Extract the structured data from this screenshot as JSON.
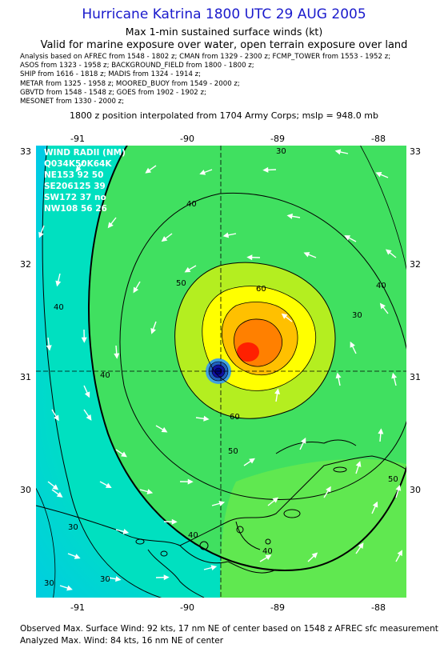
{
  "title": "Hurricane Katrina 1800 UTC 29 AUG 2005",
  "subtitle1": "Max 1-min sustained surface winds (kt)",
  "subtitle2": "Valid for marine exposure over water, open terrain exposure over land",
  "sources": [
    "Analysis based on  AFREC from 1548 - 1802 z;  CMAN from 1329 - 2300 z;  FCMP_TOWER from 1553 - 1952 z;",
    "ASOS from 1323 - 1958 z;  BACKGROUND_FIELD from 1800 - 1800 z;",
    "SHIP from 1616 - 1818 z;  MADIS from 1324 - 1914 z;",
    "METAR from 1325 - 1958 z;  MOORED_BUOY from 1549 - 2000 z;",
    "GBVTD from 1548 - 1548 z;  GOES from 1902 - 1902 z;",
    "MESONET from 1330 - 2000 z;"
  ],
  "interp_note": "1800 z position interpolated from 1704 Army Corps; mslp = 948.0 mb",
  "axes": {
    "lon_ticks": [
      "-91",
      "-90",
      "-89",
      "-88"
    ],
    "lat_ticks": [
      "33",
      "32",
      "31",
      "30"
    ]
  },
  "wind_radii": {
    "header": "WIND RADII (NM)",
    "columns": "Q034K50K64K",
    "rows": [
      "NE153 92 50",
      "SE206125 39",
      "SW172 37 no",
      "NW108 56 26"
    ]
  },
  "contour_labels": [
    "30",
    "40",
    "40",
    "50",
    "60",
    "40",
    "60",
    "50",
    "50",
    "40",
    "30",
    "40",
    "40",
    "30",
    "30",
    "30"
  ],
  "palette": {
    "c30": "#00c8e8",
    "c40": "#00e0c0",
    "c50": "#40e060",
    "c60": "#b4ee20",
    "c70": "#ffff00",
    "c80": "#ffc000",
    "c90": "#ff8000",
    "c100": "#ff2000",
    "eye": "#1010a0"
  },
  "footer1": "Observed Max. Surface Wind: 92 kts, 17 nm NE of center based on 1548 z AFREC sfc measurement",
  "footer2": "Analyzed Max. Wind: 84 kts, 16 nm NE of center"
}
